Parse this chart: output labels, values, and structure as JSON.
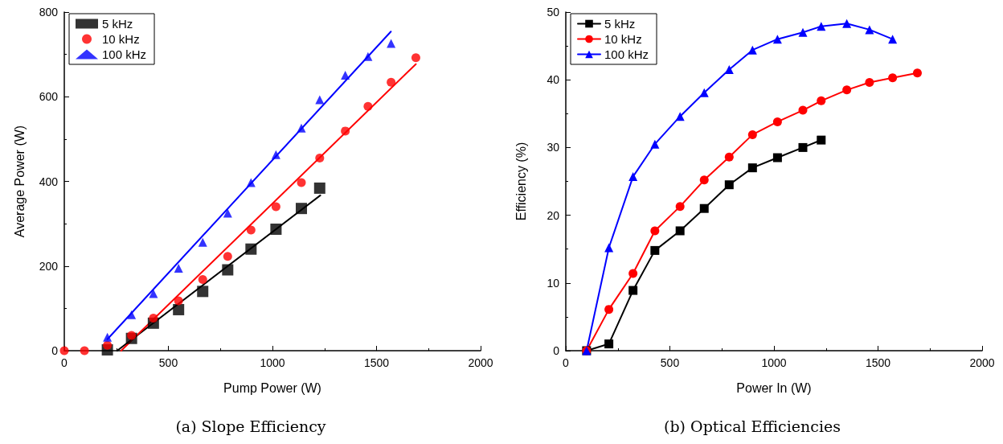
{
  "chart_data": [
    {
      "type": "scatter",
      "title": "(a) Slope Efficiency",
      "xlabel": "Pump Power (W)",
      "ylabel": "Average Power (W)",
      "xlim": [
        0,
        2000
      ],
      "xticks": [
        0,
        500,
        1000,
        1500,
        2000
      ],
      "ylim": [
        0,
        800
      ],
      "yticks": [
        0,
        200,
        400,
        600,
        800
      ],
      "legend": "top left",
      "series": [
        {
          "name": "5 kHz",
          "color": "#000000",
          "marker": "square",
          "x": [
            207,
            323,
            428,
            549,
            665,
            785,
            897,
            1017,
            1139,
            1227
          ],
          "values": [
            2,
            29,
            65,
            97,
            140,
            191,
            240,
            287,
            336,
            384
          ]
        },
        {
          "name": "10 kHz",
          "color": "#ff0000",
          "marker": "circle",
          "x": [
            0,
            97,
            207,
            323,
            428,
            549,
            665,
            785,
            897,
            1017,
            1139,
            1227,
            1350,
            1459,
            1570,
            1689
          ],
          "values": [
            0,
            0,
            13,
            36,
            77,
            118,
            168,
            223,
            285,
            340,
            397,
            455,
            519,
            577,
            634,
            692
          ]
        },
        {
          "name": "100 kHz",
          "color": "#0000ff",
          "marker": "triangle",
          "x": [
            207,
            323,
            428,
            549,
            665,
            785,
            897,
            1017,
            1139,
            1227,
            1350,
            1459,
            1570
          ],
          "values": [
            32,
            85,
            135,
            195,
            256,
            325,
            397,
            463,
            526,
            593,
            651,
            695,
            726
          ]
        },
        {
          "type": "line",
          "color": "#000000",
          "marker": "none",
          "x": [
            254,
            1230
          ],
          "values": [
            0,
            367
          ]
        },
        {
          "type": "line",
          "color": "#ff0000",
          "marker": "none",
          "x": [
            273,
            1689
          ],
          "values": [
            0,
            677
          ]
        },
        {
          "type": "line",
          "color": "#0000ff",
          "marker": "none",
          "x": [
            207,
            1569
          ],
          "values": [
            27,
            754
          ]
        }
      ]
    },
    {
      "type": "line",
      "title": "(b) Optical Efficiencies",
      "xlabel": "Power In (W)",
      "ylabel": "Efficiency (%)",
      "xlim": [
        0,
        2000
      ],
      "xticks": [
        0,
        500,
        1000,
        1500,
        2000
      ],
      "ylim": [
        0,
        50
      ],
      "yticks": [
        0,
        10,
        20,
        30,
        40,
        50
      ],
      "legend": "top left",
      "series": [
        {
          "name": "5 kHz",
          "color": "#000000",
          "marker": "square",
          "x": [
            100,
            207,
            323,
            428,
            549,
            665,
            785,
            897,
            1017,
            1139,
            1227
          ],
          "values": [
            0,
            1.0,
            8.9,
            14.8,
            17.7,
            21.0,
            24.5,
            27.0,
            28.5,
            30.0,
            31.1
          ]
        },
        {
          "name": "10 kHz",
          "color": "#ff0000",
          "marker": "circle",
          "x": [
            100,
            207,
            323,
            428,
            549,
            665,
            785,
            897,
            1017,
            1139,
            1227,
            1350,
            1459,
            1570,
            1689
          ],
          "values": [
            0,
            6.1,
            11.4,
            17.7,
            21.3,
            25.2,
            28.6,
            31.9,
            33.8,
            35.5,
            36.9,
            38.5,
            39.6,
            40.3,
            41.0
          ]
        },
        {
          "name": "100 kHz",
          "color": "#0000ff",
          "marker": "triangle",
          "x": [
            100,
            207,
            323,
            428,
            549,
            665,
            785,
            897,
            1017,
            1139,
            1227,
            1350,
            1459,
            1570
          ],
          "values": [
            0,
            15.2,
            25.7,
            30.5,
            34.6,
            38.1,
            41.5,
            44.4,
            46.0,
            47.0,
            47.9,
            48.3,
            47.4,
            46.0
          ]
        }
      ]
    }
  ]
}
